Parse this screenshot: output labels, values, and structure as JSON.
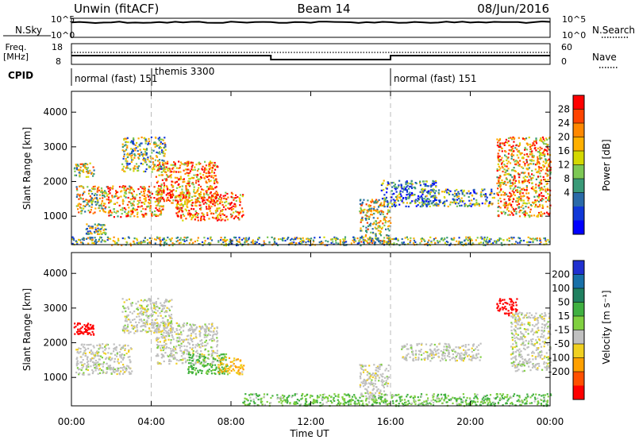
{
  "header": {
    "station": "Unwin (fitACF)",
    "beam": "Beam 14",
    "date": "08/Jun/2016"
  },
  "strip_nsky": {
    "left_label": "N.Sky",
    "right_label": "N.Search",
    "left_ticks": [
      "10^5",
      "10^0"
    ],
    "right_ticks": [
      "10^5",
      "10^0"
    ]
  },
  "strip_freq": {
    "left_label_line1": "Freq.",
    "left_label_line2": "[MHz]",
    "right_label": "Nave",
    "left_ticks": [
      "18",
      "8"
    ],
    "right_ticks": [
      "60",
      "0"
    ]
  },
  "cpid": {
    "label": "CPID",
    "segments": [
      {
        "start_h": 0,
        "end_h": 4,
        "text": "normal (fast) 151"
      },
      {
        "start_h": 4,
        "end_h": 16,
        "text": "themis 3300"
      },
      {
        "start_h": 16,
        "end_h": 24,
        "text": "normal (fast) 151"
      }
    ]
  },
  "chart_data": [
    {
      "type": "heatmap",
      "quantity": "power",
      "ylabel": "Slant Range [km]",
      "ylim": [
        180,
        4600
      ],
      "xlim": [
        0,
        24
      ],
      "yticks": [
        1000,
        2000,
        3000,
        4000
      ],
      "colorbar_label": "Power [dB]",
      "colorbar_ticks": [
        28,
        24,
        20,
        16,
        12,
        8,
        4
      ],
      "colorbar_colors": [
        "#ff0000",
        "#ff4400",
        "#ff8800",
        "#ffb000",
        "#d4d800",
        "#7dc855",
        "#3a9a78",
        "#2a6aa8",
        "#1038d8",
        "#0000ff"
      ],
      "echo_regions": [
        {
          "t0": 0.1,
          "t1": 1.1,
          "r0": 2150,
          "r1": 2550,
          "intensity": 0.5
        },
        {
          "t0": 0.2,
          "t1": 1.8,
          "r0": 1100,
          "r1": 1900,
          "intensity": 0.55
        },
        {
          "t0": 0.7,
          "t1": 1.8,
          "r0": 500,
          "r1": 800,
          "intensity": 0.45
        },
        {
          "t0": 1.8,
          "t1": 4.6,
          "r0": 1000,
          "r1": 1900,
          "intensity": 0.7
        },
        {
          "t0": 2.5,
          "t1": 4.7,
          "r0": 2300,
          "r1": 3300,
          "intensity": 0.45
        },
        {
          "t0": 4.2,
          "t1": 7.3,
          "r0": 1400,
          "r1": 2600,
          "intensity": 0.75
        },
        {
          "t0": 5.2,
          "t1": 8.6,
          "r0": 900,
          "r1": 1700,
          "intensity": 0.8
        },
        {
          "t0": 14.4,
          "t1": 16.0,
          "r0": 250,
          "r1": 1500,
          "intensity": 0.55
        },
        {
          "t0": 15.5,
          "t1": 18.3,
          "r0": 1300,
          "r1": 2050,
          "intensity": 0.3
        },
        {
          "t0": 17.5,
          "t1": 21.2,
          "r0": 1300,
          "r1": 1800,
          "intensity": 0.35
        },
        {
          "t0": 21.3,
          "t1": 24.0,
          "r0": 1000,
          "r1": 3300,
          "intensity": 0.7
        }
      ],
      "near_range_band": {
        "t0": 0.0,
        "t1": 24.0,
        "r0": 180,
        "r1": 420,
        "intensity": 0.45
      }
    },
    {
      "type": "heatmap",
      "quantity": "velocity",
      "xlabel": "Time UT",
      "ylabel": "Slant Range [km]",
      "ylim": [
        180,
        4600
      ],
      "xlim": [
        0,
        24
      ],
      "xticks": [
        "00:00",
        "04:00",
        "08:00",
        "12:00",
        "16:00",
        "20:00",
        "00:00"
      ],
      "yticks": [
        1000,
        2000,
        3000,
        4000
      ],
      "colorbar_label": "Velocity [m s⁻¹]",
      "colorbar_ticks": [
        200,
        100,
        50,
        15,
        -15,
        -50,
        -100,
        -200
      ],
      "colorbar_colors": [
        "#2030d0",
        "#1870a8",
        "#208060",
        "#40b040",
        "#80d040",
        "#c0c0c0",
        "#f0d020",
        "#ffa000",
        "#ff5000",
        "#ff0000"
      ],
      "echo_regions": [
        {
          "t0": 0.1,
          "t1": 1.1,
          "r0": 2250,
          "r1": 2600,
          "velocity": -200
        },
        {
          "t0": 0.2,
          "t1": 3.0,
          "r0": 1100,
          "r1": 2000,
          "velocity": 0
        },
        {
          "t0": 2.5,
          "t1": 5.0,
          "r0": 2300,
          "r1": 3300,
          "velocity": 0
        },
        {
          "t0": 4.2,
          "t1": 7.3,
          "r0": 1400,
          "r1": 2600,
          "velocity": 0
        },
        {
          "t0": 5.8,
          "t1": 7.8,
          "r0": 1100,
          "r1": 1700,
          "velocity": 40
        },
        {
          "t0": 7.3,
          "t1": 8.6,
          "r0": 1100,
          "r1": 1600,
          "velocity": -30
        },
        {
          "t0": 14.4,
          "t1": 15.9,
          "r0": 400,
          "r1": 1400,
          "velocity": 0
        },
        {
          "t0": 16.5,
          "t1": 20.5,
          "r0": 1500,
          "r1": 2000,
          "velocity": 0
        },
        {
          "t0": 21.3,
          "t1": 22.3,
          "r0": 2800,
          "r1": 3300,
          "velocity": -200
        },
        {
          "t0": 22.0,
          "t1": 24.0,
          "r0": 1200,
          "r1": 2900,
          "velocity": 0
        }
      ],
      "near_range_band": {
        "t0": 8.5,
        "t1": 24.0,
        "r0": 200,
        "r1": 550,
        "velocity": 30
      }
    }
  ]
}
